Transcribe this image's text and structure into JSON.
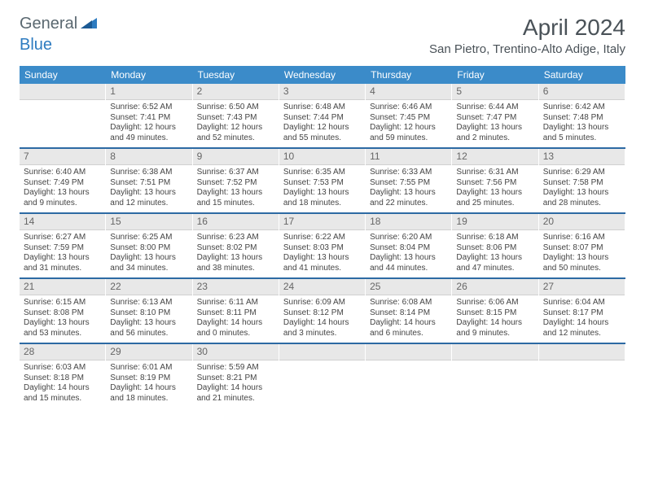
{
  "brand": {
    "part1": "General",
    "part2": "Blue"
  },
  "title": "April 2024",
  "location": "San Pietro, Trentino-Alto Adige, Italy",
  "colors": {
    "header_bg": "#3b8bc9",
    "divider": "#2d6aa3",
    "daynum_bg": "#e8e8e8",
    "text": "#444444",
    "brand_gray": "#5a6870",
    "brand_blue": "#2d7bc0"
  },
  "font": {
    "family": "Arial",
    "title_size": 28,
    "location_size": 15,
    "dayhead_size": 12,
    "body_size": 10
  },
  "day_headers": [
    "Sunday",
    "Monday",
    "Tuesday",
    "Wednesday",
    "Thursday",
    "Friday",
    "Saturday"
  ],
  "weeks": [
    [
      null,
      {
        "n": "1",
        "sr": "Sunrise: 6:52 AM",
        "ss": "Sunset: 7:41 PM",
        "d1": "Daylight: 12 hours",
        "d2": "and 49 minutes."
      },
      {
        "n": "2",
        "sr": "Sunrise: 6:50 AM",
        "ss": "Sunset: 7:43 PM",
        "d1": "Daylight: 12 hours",
        "d2": "and 52 minutes."
      },
      {
        "n": "3",
        "sr": "Sunrise: 6:48 AM",
        "ss": "Sunset: 7:44 PM",
        "d1": "Daylight: 12 hours",
        "d2": "and 55 minutes."
      },
      {
        "n": "4",
        "sr": "Sunrise: 6:46 AM",
        "ss": "Sunset: 7:45 PM",
        "d1": "Daylight: 12 hours",
        "d2": "and 59 minutes."
      },
      {
        "n": "5",
        "sr": "Sunrise: 6:44 AM",
        "ss": "Sunset: 7:47 PM",
        "d1": "Daylight: 13 hours",
        "d2": "and 2 minutes."
      },
      {
        "n": "6",
        "sr": "Sunrise: 6:42 AM",
        "ss": "Sunset: 7:48 PM",
        "d1": "Daylight: 13 hours",
        "d2": "and 5 minutes."
      }
    ],
    [
      {
        "n": "7",
        "sr": "Sunrise: 6:40 AM",
        "ss": "Sunset: 7:49 PM",
        "d1": "Daylight: 13 hours",
        "d2": "and 9 minutes."
      },
      {
        "n": "8",
        "sr": "Sunrise: 6:38 AM",
        "ss": "Sunset: 7:51 PM",
        "d1": "Daylight: 13 hours",
        "d2": "and 12 minutes."
      },
      {
        "n": "9",
        "sr": "Sunrise: 6:37 AM",
        "ss": "Sunset: 7:52 PM",
        "d1": "Daylight: 13 hours",
        "d2": "and 15 minutes."
      },
      {
        "n": "10",
        "sr": "Sunrise: 6:35 AM",
        "ss": "Sunset: 7:53 PM",
        "d1": "Daylight: 13 hours",
        "d2": "and 18 minutes."
      },
      {
        "n": "11",
        "sr": "Sunrise: 6:33 AM",
        "ss": "Sunset: 7:55 PM",
        "d1": "Daylight: 13 hours",
        "d2": "and 22 minutes."
      },
      {
        "n": "12",
        "sr": "Sunrise: 6:31 AM",
        "ss": "Sunset: 7:56 PM",
        "d1": "Daylight: 13 hours",
        "d2": "and 25 minutes."
      },
      {
        "n": "13",
        "sr": "Sunrise: 6:29 AM",
        "ss": "Sunset: 7:58 PM",
        "d1": "Daylight: 13 hours",
        "d2": "and 28 minutes."
      }
    ],
    [
      {
        "n": "14",
        "sr": "Sunrise: 6:27 AM",
        "ss": "Sunset: 7:59 PM",
        "d1": "Daylight: 13 hours",
        "d2": "and 31 minutes."
      },
      {
        "n": "15",
        "sr": "Sunrise: 6:25 AM",
        "ss": "Sunset: 8:00 PM",
        "d1": "Daylight: 13 hours",
        "d2": "and 34 minutes."
      },
      {
        "n": "16",
        "sr": "Sunrise: 6:23 AM",
        "ss": "Sunset: 8:02 PM",
        "d1": "Daylight: 13 hours",
        "d2": "and 38 minutes."
      },
      {
        "n": "17",
        "sr": "Sunrise: 6:22 AM",
        "ss": "Sunset: 8:03 PM",
        "d1": "Daylight: 13 hours",
        "d2": "and 41 minutes."
      },
      {
        "n": "18",
        "sr": "Sunrise: 6:20 AM",
        "ss": "Sunset: 8:04 PM",
        "d1": "Daylight: 13 hours",
        "d2": "and 44 minutes."
      },
      {
        "n": "19",
        "sr": "Sunrise: 6:18 AM",
        "ss": "Sunset: 8:06 PM",
        "d1": "Daylight: 13 hours",
        "d2": "and 47 minutes."
      },
      {
        "n": "20",
        "sr": "Sunrise: 6:16 AM",
        "ss": "Sunset: 8:07 PM",
        "d1": "Daylight: 13 hours",
        "d2": "and 50 minutes."
      }
    ],
    [
      {
        "n": "21",
        "sr": "Sunrise: 6:15 AM",
        "ss": "Sunset: 8:08 PM",
        "d1": "Daylight: 13 hours",
        "d2": "and 53 minutes."
      },
      {
        "n": "22",
        "sr": "Sunrise: 6:13 AM",
        "ss": "Sunset: 8:10 PM",
        "d1": "Daylight: 13 hours",
        "d2": "and 56 minutes."
      },
      {
        "n": "23",
        "sr": "Sunrise: 6:11 AM",
        "ss": "Sunset: 8:11 PM",
        "d1": "Daylight: 14 hours",
        "d2": "and 0 minutes."
      },
      {
        "n": "24",
        "sr": "Sunrise: 6:09 AM",
        "ss": "Sunset: 8:12 PM",
        "d1": "Daylight: 14 hours",
        "d2": "and 3 minutes."
      },
      {
        "n": "25",
        "sr": "Sunrise: 6:08 AM",
        "ss": "Sunset: 8:14 PM",
        "d1": "Daylight: 14 hours",
        "d2": "and 6 minutes."
      },
      {
        "n": "26",
        "sr": "Sunrise: 6:06 AM",
        "ss": "Sunset: 8:15 PM",
        "d1": "Daylight: 14 hours",
        "d2": "and 9 minutes."
      },
      {
        "n": "27",
        "sr": "Sunrise: 6:04 AM",
        "ss": "Sunset: 8:17 PM",
        "d1": "Daylight: 14 hours",
        "d2": "and 12 minutes."
      }
    ],
    [
      {
        "n": "28",
        "sr": "Sunrise: 6:03 AM",
        "ss": "Sunset: 8:18 PM",
        "d1": "Daylight: 14 hours",
        "d2": "and 15 minutes."
      },
      {
        "n": "29",
        "sr": "Sunrise: 6:01 AM",
        "ss": "Sunset: 8:19 PM",
        "d1": "Daylight: 14 hours",
        "d2": "and 18 minutes."
      },
      {
        "n": "30",
        "sr": "Sunrise: 5:59 AM",
        "ss": "Sunset: 8:21 PM",
        "d1": "Daylight: 14 hours",
        "d2": "and 21 minutes."
      },
      null,
      null,
      null,
      null
    ]
  ]
}
